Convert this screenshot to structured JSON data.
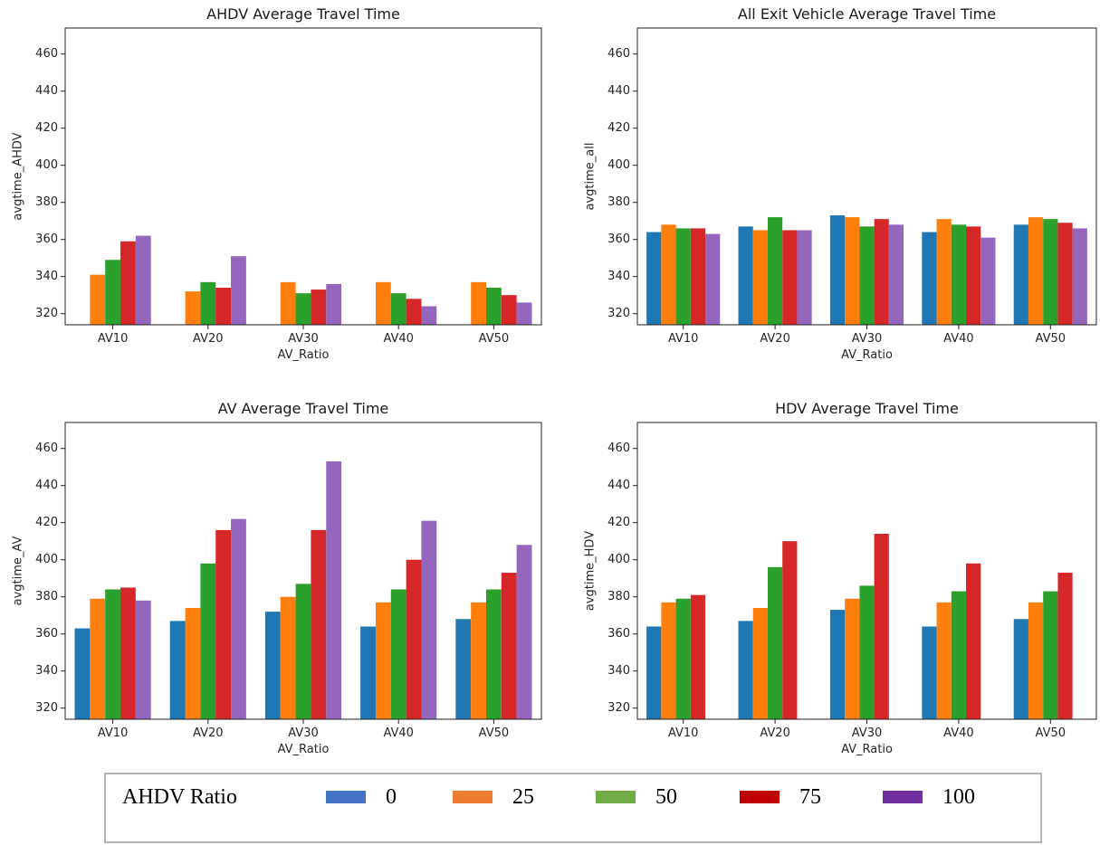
{
  "chart_data": [
    {
      "type": "bar",
      "title": "AHDV Average Travel Time",
      "xlabel": "AV_Ratio",
      "ylabel": "avgtime_AHDV",
      "ylim": [
        314,
        474
      ],
      "yticks": [
        320,
        340,
        360,
        380,
        400,
        420,
        440,
        460
      ],
      "categories": [
        "AV10",
        "AV20",
        "AV30",
        "AV40",
        "AV50"
      ],
      "series": [
        {
          "name": "0",
          "values": [
            null,
            null,
            null,
            null,
            null
          ]
        },
        {
          "name": "25",
          "values": [
            341,
            332,
            337,
            337,
            337
          ]
        },
        {
          "name": "50",
          "values": [
            349,
            337,
            331,
            331,
            334
          ]
        },
        {
          "name": "75",
          "values": [
            359,
            334,
            333,
            328,
            330
          ]
        },
        {
          "name": "100",
          "values": [
            362,
            351,
            336,
            324,
            326
          ]
        }
      ]
    },
    {
      "type": "bar",
      "title": "All Exit Vehicle Average Travel Time",
      "xlabel": "AV_Ratio",
      "ylabel": "avgtime_all",
      "ylim": [
        314,
        474
      ],
      "yticks": [
        320,
        340,
        360,
        380,
        400,
        420,
        440,
        460
      ],
      "categories": [
        "AV10",
        "AV20",
        "AV30",
        "AV40",
        "AV50"
      ],
      "series": [
        {
          "name": "0",
          "values": [
            364,
            367,
            373,
            364,
            368
          ]
        },
        {
          "name": "25",
          "values": [
            368,
            365,
            372,
            371,
            372
          ]
        },
        {
          "name": "50",
          "values": [
            366,
            372,
            367,
            368,
            371
          ]
        },
        {
          "name": "75",
          "values": [
            366,
            365,
            371,
            367,
            369
          ]
        },
        {
          "name": "100",
          "values": [
            363,
            365,
            368,
            361,
            366
          ]
        }
      ]
    },
    {
      "type": "bar",
      "title": "AV Average Travel Time",
      "xlabel": "AV_Ratio",
      "ylabel": "avgtime_AV",
      "ylim": [
        314,
        474
      ],
      "yticks": [
        320,
        340,
        360,
        380,
        400,
        420,
        440,
        460
      ],
      "categories": [
        "AV10",
        "AV20",
        "AV30",
        "AV40",
        "AV50"
      ],
      "series": [
        {
          "name": "0",
          "values": [
            363,
            367,
            372,
            364,
            368
          ]
        },
        {
          "name": "25",
          "values": [
            379,
            374,
            380,
            377,
            377
          ]
        },
        {
          "name": "50",
          "values": [
            384,
            398,
            387,
            384,
            384
          ]
        },
        {
          "name": "75",
          "values": [
            385,
            416,
            416,
            400,
            393
          ]
        },
        {
          "name": "100",
          "values": [
            378,
            422,
            453,
            421,
            408
          ]
        }
      ]
    },
    {
      "type": "bar",
      "title": "HDV Average Travel Time",
      "xlabel": "AV_Ratio",
      "ylabel": "avgtime_HDV",
      "ylim": [
        314,
        474
      ],
      "yticks": [
        320,
        340,
        360,
        380,
        400,
        420,
        440,
        460
      ],
      "categories": [
        "AV10",
        "AV20",
        "AV30",
        "AV40",
        "AV50"
      ],
      "series": [
        {
          "name": "0",
          "values": [
            364,
            367,
            373,
            364,
            368
          ]
        },
        {
          "name": "25",
          "values": [
            377,
            374,
            379,
            377,
            377
          ]
        },
        {
          "name": "50",
          "values": [
            379,
            396,
            386,
            383,
            383
          ]
        },
        {
          "name": "75",
          "values": [
            381,
            410,
            414,
            398,
            393
          ]
        },
        {
          "name": "100",
          "values": [
            null,
            null,
            null,
            null,
            null
          ]
        }
      ]
    }
  ],
  "series_colors": [
    "#1f77b4",
    "#ff7f0e",
    "#2ca02c",
    "#d62728",
    "#9467bd"
  ],
  "legend": {
    "title": "AHDV Ratio",
    "items": [
      {
        "label": "0",
        "color": "#4472c4"
      },
      {
        "label": "25",
        "color": "#ed7d31"
      },
      {
        "label": "50",
        "color": "#70ad47"
      },
      {
        "label": "75",
        "color": "#c00000"
      },
      {
        "label": "100",
        "color": "#7030a0"
      }
    ]
  }
}
